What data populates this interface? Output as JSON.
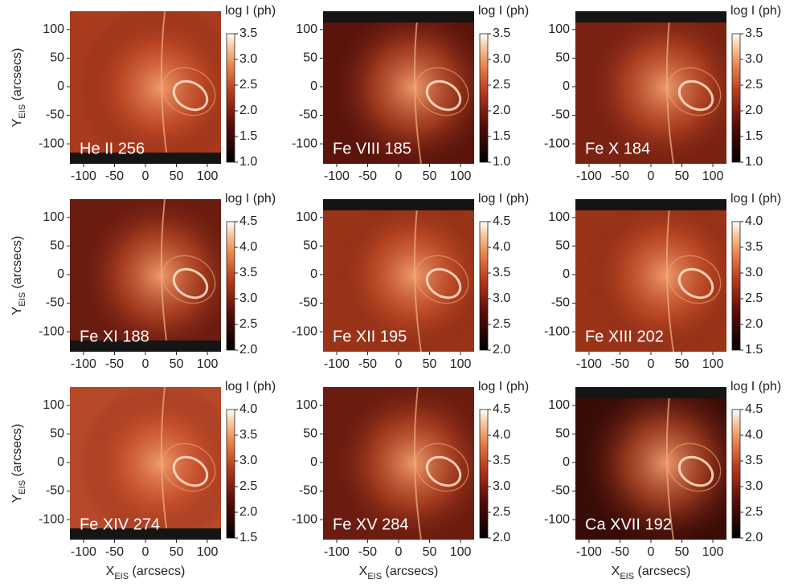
{
  "chart_data": [
    {
      "type": "heatmap",
      "title": "He II 256",
      "colorbar_label": "log I (ph)",
      "ylabel": [
        "Y",
        "EIS",
        " (arcsecs)"
      ],
      "xlim": [
        -122,
        122
      ],
      "xticks": [
        -100,
        -50,
        0,
        50,
        100
      ],
      "ylim": [
        -135,
        132
      ],
      "yticks": [
        -100,
        -50,
        0,
        50,
        100
      ],
      "clim": [
        1,
        3.5
      ],
      "cticks": [
        {
          "value": 1,
          "label": "1.0"
        },
        1.5,
        {
          "value": 2,
          "label": "2.0"
        },
        2.5,
        {
          "value": 3,
          "label": "3.0"
        },
        3.5
      ]
    },
    {
      "type": "heatmap",
      "title": "Fe VIII 185",
      "colorbar_label": "log I (ph)",
      "xlim": [
        -122,
        122
      ],
      "xticks": [
        -100,
        -50,
        0,
        50,
        100
      ],
      "ylim": [
        -135,
        132
      ],
      "yticks": [
        -100,
        -50,
        0,
        50,
        100
      ],
      "clim": [
        1,
        3.5
      ],
      "cticks": [
        {
          "value": 1,
          "label": "1.0"
        },
        1.5,
        {
          "value": 2,
          "label": "2.0"
        },
        2.5,
        {
          "value": 3,
          "label": "3.0"
        },
        3.5
      ]
    },
    {
      "type": "heatmap",
      "title": "Fe X 184",
      "colorbar_label": "log I (ph)",
      "xlim": [
        -122,
        122
      ],
      "xticks": [
        -100,
        -50,
        0,
        50,
        100
      ],
      "ylim": [
        -135,
        132
      ],
      "yticks": [
        -100,
        -50,
        0,
        50,
        100
      ],
      "clim": [
        1,
        3.5
      ],
      "cticks": [
        {
          "value": 1,
          "label": "1.0"
        },
        1.5,
        {
          "value": 2,
          "label": "2.0"
        },
        2.5,
        {
          "value": 3,
          "label": "3.0"
        },
        3.5
      ]
    },
    {
      "type": "heatmap",
      "title": "Fe XI 188",
      "colorbar_label": "log I (ph)",
      "ylabel": [
        "Y",
        "EIS",
        " (arcsecs)"
      ],
      "xlim": [
        -122,
        122
      ],
      "xticks": [
        -100,
        -50,
        0,
        50,
        100
      ],
      "ylim": [
        -135,
        132
      ],
      "yticks": [
        -100,
        -50,
        0,
        50,
        100
      ],
      "clim": [
        2,
        4.5
      ],
      "cticks": [
        {
          "value": 2,
          "label": "2.0"
        },
        2.5,
        {
          "value": 3,
          "label": "3.0"
        },
        3.5,
        {
          "value": 4,
          "label": "4.0"
        },
        4.5
      ]
    },
    {
      "type": "heatmap",
      "title": "Fe XII 195",
      "colorbar_label": "log I (ph)",
      "xlim": [
        -122,
        122
      ],
      "xticks": [
        -100,
        -50,
        0,
        50,
        100
      ],
      "ylim": [
        -135,
        132
      ],
      "yticks": [
        -100,
        -50,
        0,
        50,
        100
      ],
      "clim": [
        2,
        4.5
      ],
      "cticks": [
        {
          "value": 2,
          "label": "2.0"
        },
        2.5,
        {
          "value": 3,
          "label": "3.0"
        },
        3.5,
        {
          "value": 4,
          "label": "4.0"
        },
        4.5
      ]
    },
    {
      "type": "heatmap",
      "title": "Fe XIII 202",
      "colorbar_label": "log I (ph)",
      "xlim": [
        -122,
        122
      ],
      "xticks": [
        -100,
        -50,
        0,
        50,
        100
      ],
      "ylim": [
        -135,
        132
      ],
      "yticks": [
        -100,
        -50,
        0,
        50,
        100
      ],
      "clim": [
        1.5,
        4
      ],
      "cticks": [
        1.5,
        {
          "value": 2,
          "label": "2.0"
        },
        2.5,
        {
          "value": 3,
          "label": "3.0"
        },
        3.5,
        {
          "value": 4,
          "label": "4.0"
        }
      ]
    },
    {
      "type": "heatmap",
      "title": "Fe XIV 274",
      "colorbar_label": "log I (ph)",
      "ylabel": [
        "Y",
        "EIS",
        " (arcsecs)"
      ],
      "xlabel": [
        "X",
        "EIS",
        " (arcsecs)"
      ],
      "xlim": [
        -122,
        122
      ],
      "xticks": [
        -100,
        -50,
        0,
        50,
        100
      ],
      "ylim": [
        -135,
        132
      ],
      "yticks": [
        -100,
        -50,
        0,
        50,
        100
      ],
      "clim": [
        1.5,
        4
      ],
      "cticks": [
        1.5,
        {
          "value": 2,
          "label": "2.0"
        },
        2.5,
        {
          "value": 3,
          "label": "3.0"
        },
        3.5,
        {
          "value": 4,
          "label": "4.0"
        }
      ]
    },
    {
      "type": "heatmap",
      "title": "Fe XV 284",
      "colorbar_label": "log I (ph)",
      "xlabel": [
        "X",
        "EIS",
        " (arcsecs)"
      ],
      "xlim": [
        -122,
        122
      ],
      "xticks": [
        -100,
        -50,
        0,
        50,
        100
      ],
      "ylim": [
        -135,
        132
      ],
      "yticks": [
        -100,
        -50,
        0,
        50,
        100
      ],
      "clim": [
        2,
        4.5
      ],
      "cticks": [
        {
          "value": 2,
          "label": "2.0"
        },
        2.5,
        {
          "value": 3,
          "label": "3.0"
        },
        3.5,
        {
          "value": 4,
          "label": "4.0"
        },
        4.5
      ]
    },
    {
      "type": "heatmap",
      "title": "Ca XVII 192",
      "colorbar_label": "log I (ph)",
      "xlabel": [
        "X",
        "EIS",
        " (arcsecs)"
      ],
      "xlim": [
        -122,
        122
      ],
      "xticks": [
        -100,
        -50,
        0,
        50,
        100
      ],
      "ylim": [
        -135,
        132
      ],
      "yticks": [
        -100,
        -50,
        0,
        50,
        100
      ],
      "clim": [
        2,
        4.5
      ],
      "cticks": [
        {
          "value": 2,
          "label": "2.0"
        },
        2.5,
        {
          "value": 3,
          "label": "3.0"
        },
        3.5,
        {
          "value": 4,
          "label": "4.0"
        },
        4.5
      ]
    }
  ]
}
